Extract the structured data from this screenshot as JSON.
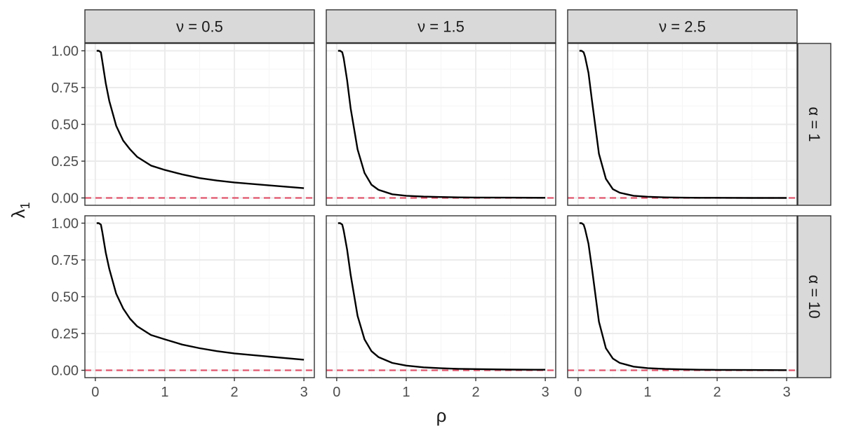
{
  "chart_data": {
    "type": "line",
    "facets": {
      "columns": [
        "ν = 0.5",
        "ν = 1.5",
        "ν = 2.5"
      ],
      "rows": [
        "α = 1",
        "α = 10"
      ]
    },
    "xlabel": "ρ",
    "ylabel": "λ",
    "ylabel_subscript": "1",
    "xlim": [
      -0.15,
      3.15
    ],
    "ylim": [
      -0.05,
      1.05
    ],
    "xticks": [
      0,
      1,
      2,
      3
    ],
    "yticks": [
      0.0,
      0.25,
      0.5,
      0.75,
      1.0
    ],
    "ytick_labels": [
      "0.00",
      "0.25",
      "0.50",
      "0.75",
      "1.00"
    ],
    "xtick_labels": [
      "0",
      "1",
      "2",
      "3"
    ],
    "grid": true,
    "theme": "bw",
    "colors": {
      "line": "#000000",
      "reference_line": "#df536b",
      "strip_fill": "#d9d9d9",
      "grid_major": "#ebebeb",
      "grid_minor": "#f5f5f5",
      "panel_border": "#333333"
    },
    "reference_line": {
      "y": 0,
      "style": "dashed"
    },
    "panels": [
      {
        "col": 0,
        "row": 0,
        "x": [
          0.02,
          0.05,
          0.08,
          0.1,
          0.15,
          0.2,
          0.3,
          0.4,
          0.5,
          0.6,
          0.8,
          1.0,
          1.25,
          1.5,
          1.75,
          2.0,
          2.5,
          3.0
        ],
        "y": [
          1.0,
          1.0,
          0.99,
          0.93,
          0.78,
          0.66,
          0.49,
          0.39,
          0.33,
          0.28,
          0.22,
          0.19,
          0.16,
          0.135,
          0.118,
          0.105,
          0.085,
          0.066
        ]
      },
      {
        "col": 1,
        "row": 0,
        "x": [
          0.02,
          0.05,
          0.08,
          0.1,
          0.15,
          0.2,
          0.3,
          0.4,
          0.5,
          0.6,
          0.8,
          1.0,
          1.25,
          1.5,
          1.75,
          2.0,
          2.5,
          3.0
        ],
        "y": [
          1.0,
          1.0,
          0.99,
          0.95,
          0.8,
          0.61,
          0.33,
          0.17,
          0.09,
          0.055,
          0.025,
          0.015,
          0.009,
          0.006,
          0.004,
          0.003,
          0.002,
          0.001
        ]
      },
      {
        "col": 2,
        "row": 0,
        "x": [
          0.02,
          0.05,
          0.08,
          0.1,
          0.15,
          0.2,
          0.3,
          0.4,
          0.5,
          0.6,
          0.8,
          1.0,
          1.25,
          1.5,
          1.75,
          2.0,
          2.5,
          3.0
        ],
        "y": [
          1.0,
          1.0,
          0.99,
          0.96,
          0.85,
          0.66,
          0.3,
          0.13,
          0.06,
          0.035,
          0.015,
          0.008,
          0.004,
          0.002,
          0.001,
          0.001,
          0.0,
          0.0
        ]
      },
      {
        "col": 0,
        "row": 1,
        "x": [
          0.02,
          0.05,
          0.08,
          0.1,
          0.15,
          0.2,
          0.3,
          0.4,
          0.5,
          0.6,
          0.8,
          1.0,
          1.25,
          1.5,
          1.75,
          2.0,
          2.5,
          3.0
        ],
        "y": [
          1.0,
          1.0,
          0.99,
          0.94,
          0.8,
          0.69,
          0.52,
          0.42,
          0.35,
          0.3,
          0.24,
          0.21,
          0.175,
          0.15,
          0.13,
          0.115,
          0.093,
          0.072
        ]
      },
      {
        "col": 1,
        "row": 1,
        "x": [
          0.02,
          0.05,
          0.08,
          0.1,
          0.15,
          0.2,
          0.3,
          0.4,
          0.5,
          0.6,
          0.8,
          1.0,
          1.25,
          1.5,
          1.75,
          2.0,
          2.5,
          3.0
        ],
        "y": [
          1.0,
          1.0,
          0.99,
          0.95,
          0.82,
          0.65,
          0.37,
          0.21,
          0.13,
          0.09,
          0.05,
          0.032,
          0.02,
          0.014,
          0.01,
          0.008,
          0.005,
          0.004
        ]
      },
      {
        "col": 2,
        "row": 1,
        "x": [
          0.02,
          0.05,
          0.08,
          0.1,
          0.15,
          0.2,
          0.3,
          0.4,
          0.5,
          0.6,
          0.8,
          1.0,
          1.25,
          1.5,
          1.75,
          2.0,
          2.5,
          3.0
        ],
        "y": [
          1.0,
          1.0,
          0.99,
          0.96,
          0.86,
          0.69,
          0.33,
          0.15,
          0.08,
          0.05,
          0.025,
          0.015,
          0.009,
          0.006,
          0.004,
          0.003,
          0.002,
          0.001
        ]
      }
    ]
  }
}
